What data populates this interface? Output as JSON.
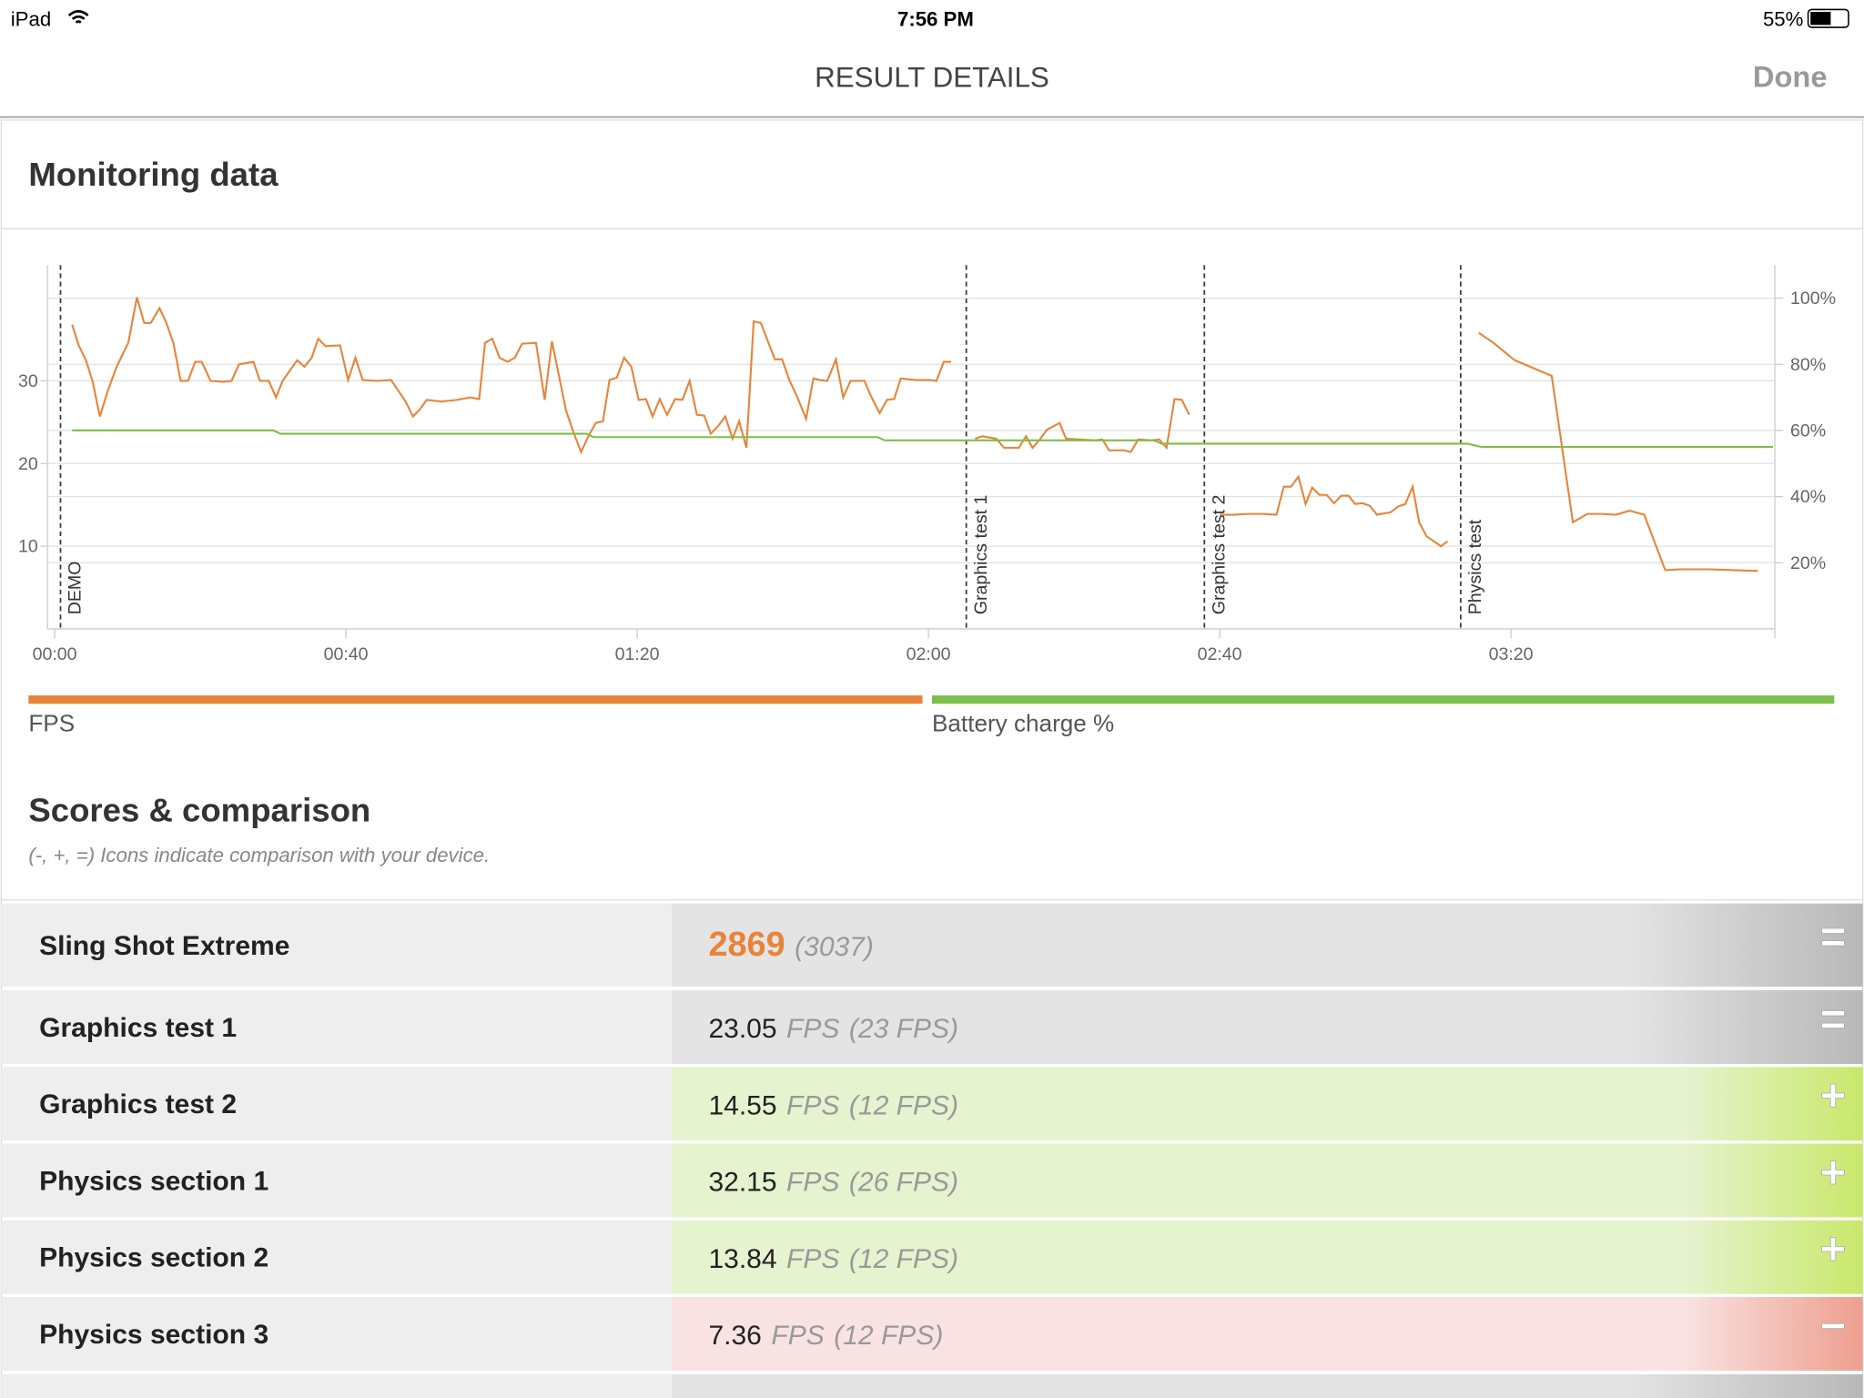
{
  "status_bar": {
    "device": "iPad",
    "time": "7:56 PM",
    "battery": "55%"
  },
  "nav": {
    "title": "RESULT DETAILS",
    "done": "Done"
  },
  "monitoring": {
    "title": "Monitoring data"
  },
  "chart_data": {
    "type": "line",
    "xlim": [
      0,
      236
    ],
    "ylim": [
      0,
      44
    ],
    "y2lim": [
      0,
      110
    ],
    "xticks": [
      {
        "value": 0,
        "label": "00:00"
      },
      {
        "value": 40,
        "label": "00:40"
      },
      {
        "value": 80,
        "label": "01:20"
      },
      {
        "value": 120,
        "label": "02:00"
      },
      {
        "value": 160,
        "label": "02:40"
      },
      {
        "value": 200,
        "label": "03:20"
      }
    ],
    "yticks": [
      10,
      20,
      30
    ],
    "y2ticks": [
      {
        "value": 20,
        "label": "20%"
      },
      {
        "value": 40,
        "label": "40%"
      },
      {
        "value": 60,
        "label": "60%"
      },
      {
        "value": 80,
        "label": "80%"
      },
      {
        "value": 100,
        "label": "100%"
      }
    ],
    "grid": true,
    "markers": [
      {
        "label": "DEMO",
        "x": 0.8
      },
      {
        "label": "Graphics test 1",
        "x": 125.2
      },
      {
        "label": "Graphics test 2",
        "x": 157.9
      },
      {
        "label": "Physics test",
        "x": 193.1
      }
    ],
    "series": [
      {
        "name": "FPS",
        "color": "#e8843a",
        "axis": "y",
        "x": [
          2.4,
          3.3,
          4.3,
          5.2,
          6.2,
          7.3,
          8.5,
          10.1,
          11.3,
          12.3,
          13.2,
          14.4,
          15.3,
          16.3,
          17.3,
          18.3,
          19.3,
          20.2,
          21.4,
          23.2,
          24.3,
          25.3,
          27.3,
          28.2,
          29.4,
          30.4,
          31.3,
          33.3,
          34.3,
          35.3,
          36.2,
          37.2,
          39.2,
          40.3,
          41.3,
          42.3,
          44.3,
          46.2,
          48.2,
          49.2,
          50.1,
          51.1,
          53.1,
          55.2,
          57.1,
          58.3,
          59.1,
          60.1,
          61.1,
          62.2,
          63.2,
          64.2,
          66.1,
          67.3,
          68.3,
          70.2,
          71.2,
          72.3,
          73.3,
          74.3,
          75.3,
          76.2,
          77.2,
          78.2,
          79.2,
          80.2,
          81.2,
          82.1,
          83.1,
          84.1,
          85.2,
          86.2,
          87.2,
          88.2,
          89.2,
          90.1,
          91.1,
          92.1,
          93.1,
          94.0,
          95.0,
          96.0,
          97.0,
          98.9,
          99.9,
          100.9,
          102.0,
          103.2,
          104.2,
          105.1,
          106.1,
          107.3,
          108.3,
          109.3,
          111.2,
          112.2,
          113.3,
          114.3,
          115.3,
          116.2,
          118.2,
          120.2,
          121.1,
          122.1,
          123.1,
          124.5,
          126.4,
          127.4,
          129.3,
          130.4,
          132.4,
          133.4,
          134.3,
          135.3,
          136.3,
          138.0,
          138.9,
          140.9,
          142.9,
          143.9,
          144.8,
          146.8,
          147.8,
          148.8,
          150.7,
          151.7,
          152.7,
          153.8,
          154.8,
          155.8,
          158,
          160.0,
          162.0,
          163.9,
          165.9,
          167.8,
          168.8,
          169.8,
          170.8,
          171.8,
          172.7,
          173.7,
          174.7,
          175.7,
          176.7,
          177.7,
          178.6,
          179.6,
          180.6,
          181.6,
          183.5,
          184.5,
          185.5,
          186.5,
          187.4,
          188.4,
          190.4,
          191.3,
          193.5,
          195.6,
          197.6,
          200.5,
          205.6,
          208.5,
          210.5,
          212.4,
          214.4,
          216.3,
          218.3,
          221.2,
          223.2,
          227.1,
          233.9
        ],
        "values": [
          36.8,
          34.3,
          32.5,
          30,
          25.7,
          28.8,
          31.7,
          34.6,
          40.1,
          37,
          37,
          38.8,
          37.1,
          34.6,
          30,
          30,
          32.3,
          32.3,
          30,
          29.9,
          30,
          32,
          32.3,
          30,
          30,
          28,
          30,
          32.5,
          31.7,
          32.8,
          35.1,
          34.2,
          34.3,
          30.1,
          32.8,
          30.1,
          30,
          30.1,
          27.5,
          25.7,
          26.5,
          27.7,
          27.5,
          27.7,
          28,
          27.8,
          34.6,
          35.1,
          32.8,
          32.3,
          32.8,
          34.5,
          34.6,
          27.7,
          34.8,
          26.5,
          23.9,
          21.4,
          23.3,
          24.9,
          25.1,
          30.1,
          30.4,
          32.8,
          31.7,
          27.7,
          27.8,
          25.7,
          27.8,
          25.9,
          27.8,
          27.7,
          30,
          25.9,
          25.8,
          23.6,
          24.5,
          25.7,
          23,
          25.1,
          21.9,
          37.2,
          37,
          32.6,
          32.6,
          30.1,
          28,
          25.4,
          30.3,
          30.1,
          30,
          32.6,
          28,
          30,
          30,
          28,
          26.1,
          27.7,
          27.8,
          30.3,
          30.1,
          30.1,
          30,
          32.3,
          32.3,
          null,
          23,
          23.3,
          23,
          21.9,
          21.9,
          23.3,
          21.9,
          22.9,
          24.1,
          24.9,
          23,
          22.9,
          22.8,
          22.9,
          21.6,
          21.6,
          21.4,
          22.9,
          22.8,
          22.9,
          21.9,
          27.8,
          27.7,
          25.9,
          null,
          13.8,
          13.8,
          13.9,
          13.9,
          13.8,
          17.2,
          17.2,
          18.4,
          15.1,
          17.1,
          16.2,
          16.2,
          15.2,
          16.1,
          16.1,
          15.1,
          15.2,
          14.9,
          13.8,
          14.1,
          14.8,
          15.1,
          17.2,
          12.9,
          11.2,
          10,
          10.6,
          null,
          35.8,
          34.6,
          32.5,
          30.6,
          12.9,
          13.9,
          13.9,
          13.8,
          14.3,
          13.8,
          7.1,
          7.2,
          7.2,
          7
        ]
      },
      {
        "name": "Battery charge %",
        "color": "#7dbf4a",
        "axis": "y2",
        "x": [
          2.4,
          30,
          31,
          73,
          74,
          113,
          114,
          151,
          152,
          194,
          196,
          236
        ],
        "values": [
          60,
          60,
          59,
          59,
          58,
          58,
          57,
          57,
          56,
          56,
          55,
          55
        ]
      }
    ]
  },
  "scores": {
    "title": "Scores & comparison",
    "note": "(-, +, =) Icons indicate comparison with your device.",
    "rows": [
      {
        "name": "Sling Shot Extreme",
        "score": 2869,
        "reference": "(3037)",
        "icon": "="
      },
      {
        "name": "Graphics test 1",
        "score": 23.05,
        "unit": "FPS",
        "reference": "(23 FPS)",
        "icon": "="
      },
      {
        "name": "Graphics test 2",
        "score": 14.55,
        "unit": "FPS",
        "reference": "(12 FPS)",
        "icon": "+"
      },
      {
        "name": "Physics section 1",
        "score": 32.15,
        "unit": "FPS",
        "reference": "(26 FPS)",
        "icon": "+"
      },
      {
        "name": "Physics section 2",
        "score": 13.84,
        "unit": "FPS",
        "reference": "(12 FPS)",
        "icon": "+"
      },
      {
        "name": "Physics section 3",
        "score": 7.36,
        "unit": "FPS",
        "reference": "(12 FPS)",
        "icon": "−"
      }
    ]
  }
}
